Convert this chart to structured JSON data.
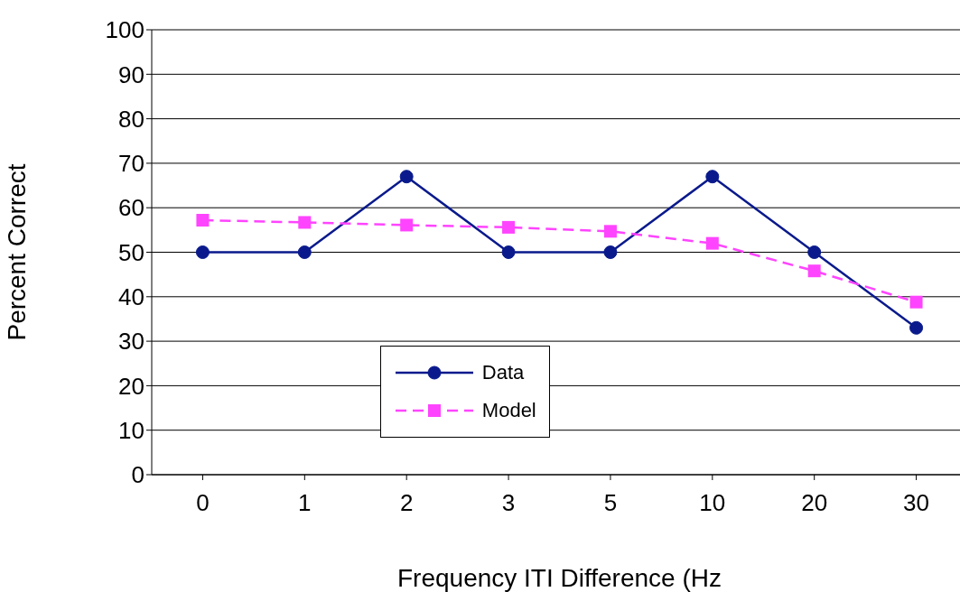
{
  "chart_data": {
    "type": "line",
    "xlabel": "Frequency ITI Difference (Hz",
    "ylabel": "Percent Correct",
    "categories": [
      "0",
      "1",
      "2",
      "3",
      "5",
      "10",
      "20",
      "30"
    ],
    "series": [
      {
        "name": "Data",
        "color": "#0a1a8c",
        "values": [
          50,
          50,
          67,
          50,
          50,
          67,
          50,
          33
        ],
        "marker": "circle",
        "line_style": "solid"
      },
      {
        "name": "Model",
        "color": "#ff44ff",
        "values": [
          57.2,
          56.7,
          56.1,
          55.6,
          54.7,
          52,
          45.8,
          38.8
        ],
        "marker": "square",
        "line_style": "dashed"
      }
    ],
    "ylim": [
      0,
      100
    ],
    "yticks": [
      0,
      10,
      20,
      30,
      40,
      50,
      60,
      70,
      80,
      90,
      100
    ],
    "grid": "y",
    "legend": "bottom"
  }
}
